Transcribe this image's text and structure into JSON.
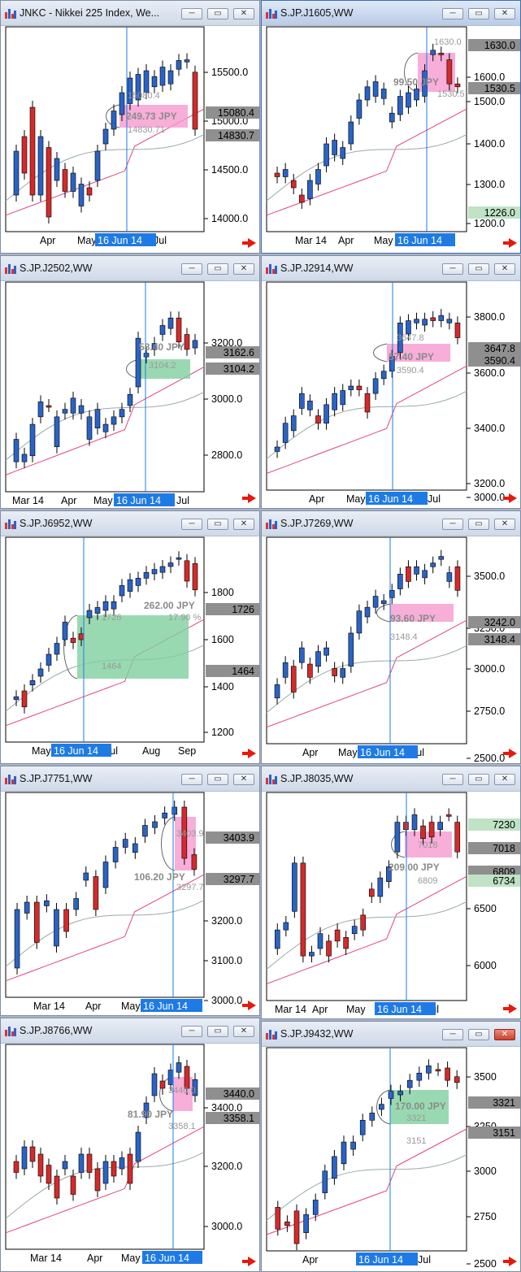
{
  "windows": [
    {
      "id": "w1",
      "title": "JNKC - Nikkei 225 Index, We...",
      "active": false,
      "yticks": [
        "15500.0",
        "15000.0",
        "14500.0",
        "14000.0"
      ],
      "price_labels": [
        {
          "text": "15080.4",
          "color": "gray"
        },
        {
          "text": "14830.7",
          "color": "gray"
        }
      ],
      "xlabels": [
        "Apr",
        "May",
        "Jul"
      ],
      "date_label": "16 Jun 14",
      "overlay": {
        "color": "pink",
        "amount": "249.73 JPY",
        "top_value": "15080.4",
        "bottom_value": "14830.71"
      }
    },
    {
      "id": "w2",
      "title": "S.JP.J1605,WW",
      "active": true,
      "yticks": [
        "1600.0",
        "1500.0",
        "1400.0",
        "1300.0",
        "1200.0"
      ],
      "price_labels": [
        {
          "text": "1630.0",
          "color": "gray"
        },
        {
          "text": "1530.5",
          "color": "gray"
        },
        {
          "text": "1226.0",
          "color": "green"
        }
      ],
      "xlabels": [
        "Mar 14",
        "Apr",
        "May"
      ],
      "date_label": "16 Jun 14",
      "overlay": {
        "color": "pink",
        "amount": "99.50 JPY",
        "top_value": "1630.0",
        "bottom_value": "1530.5"
      }
    },
    {
      "id": "w3",
      "title": "S.JP.J2502,WW",
      "active": false,
      "yticks": [
        "3200.0",
        "3000.0",
        "2800.0"
      ],
      "price_labels": [
        {
          "text": "3162.6",
          "color": "gray"
        },
        {
          "text": "3104.2",
          "color": "gray"
        }
      ],
      "xlabels": [
        "Mar 14",
        "Apr",
        "May",
        "Jul"
      ],
      "date_label": "16 Jun 14",
      "overlay": {
        "color": "green",
        "amount": "58.40 JPY",
        "top_value": "",
        "bottom_value": "3104.2"
      }
    },
    {
      "id": "w4",
      "title": "S.JP.J2914,WW",
      "active": false,
      "yticks": [
        "3800.0",
        "3600.0",
        "3400.0",
        "3200.0",
        "3000.0"
      ],
      "price_labels": [
        {
          "text": "3647.8",
          "color": "gray"
        },
        {
          "text": "3590.4",
          "color": "gray"
        }
      ],
      "xlabels": [
        "Apr",
        "May",
        "Jul"
      ],
      "date_label": "16 Jun 14",
      "overlay": {
        "color": "pink",
        "amount": "57.40 JPY",
        "top_value": "3647.8",
        "bottom_value": "3590.4"
      }
    },
    {
      "id": "w5",
      "title": "S.JP.J6952,WW",
      "active": false,
      "yticks": [
        "1800",
        "1600",
        "1400",
        "1200"
      ],
      "price_labels": [
        {
          "text": "1726",
          "color": "gray"
        },
        {
          "text": "1464",
          "color": "gray"
        }
      ],
      "xlabels": [
        "May",
        "Jul",
        "Aug",
        "Sep"
      ],
      "date_label": "16 Jun 14",
      "overlay": {
        "color": "green",
        "amount": "262.00 JPY",
        "top_value": "1726",
        "bottom_value": "1464",
        "percent": "17.90 %"
      }
    },
    {
      "id": "w6",
      "title": "S.JP.J7269,WW",
      "active": false,
      "yticks": [
        "3500.0",
        "3250.0",
        "3000.0",
        "2750.0",
        "2500.0"
      ],
      "price_labels": [
        {
          "text": "3242.0",
          "color": "gray"
        },
        {
          "text": "3148.4",
          "color": "gray"
        }
      ],
      "xlabels": [
        "Apr",
        "May",
        "Jul"
      ],
      "date_label": "16 Jun 14",
      "overlay": {
        "color": "pink",
        "amount": "93.60 JPY",
        "top_value": "",
        "bottom_value": "3148.4"
      }
    },
    {
      "id": "w7",
      "title": "S.JP.J7751,WW",
      "active": false,
      "yticks": [
        "3200.0",
        "3100.0",
        "3000.0"
      ],
      "price_labels": [
        {
          "text": "3403.9",
          "color": "gray"
        },
        {
          "text": "3297.7",
          "color": "gray"
        }
      ],
      "xlabels": [
        "Mar 14",
        "Apr",
        "May"
      ],
      "date_label": "16 Jun 14",
      "overlay": {
        "color": "pink",
        "amount": "106.20 JPY",
        "top_value": "3403.9",
        "bottom_value": "3297.7"
      }
    },
    {
      "id": "w8",
      "title": "S.JP.J8035,WW",
      "active": false,
      "yticks": [
        "6500",
        "6000"
      ],
      "price_labels": [
        {
          "text": "7230",
          "color": "green"
        },
        {
          "text": "7018",
          "color": "gray"
        },
        {
          "text": "6809",
          "color": "gray"
        },
        {
          "text": "6734",
          "color": "green"
        }
      ],
      "xlabels": [
        "Mar 14",
        "Apr",
        "May",
        "Jul"
      ],
      "date_label": "16 Jun 14",
      "overlay": {
        "color": "pink",
        "amount": "209.00 JPY",
        "top_value": "7018",
        "bottom_value": "6809"
      }
    },
    {
      "id": "w9",
      "title": "S.JP.J8766,WW",
      "active": false,
      "yticks": [
        "3400.0",
        "3200.0",
        "3000.0"
      ],
      "price_labels": [
        {
          "text": "3440.0",
          "color": "gray"
        },
        {
          "text": "3358.1",
          "color": "gray"
        }
      ],
      "xlabels": [
        "Mar 14",
        "Apr",
        "May"
      ],
      "date_label": "16 Jun 14",
      "overlay": {
        "color": "pink",
        "amount": "81.90 JPY",
        "top_value": "3440.0",
        "bottom_value": "3358.1"
      }
    },
    {
      "id": "w10",
      "title": "S.JP.J9432,WW",
      "active": false,
      "yticks": [
        "3500",
        "3250",
        "3000",
        "2750",
        "2500"
      ],
      "price_labels": [
        {
          "text": "3321",
          "color": "gray"
        },
        {
          "text": "3151",
          "color": "gray"
        }
      ],
      "xlabels": [
        "Apr",
        "Jul"
      ],
      "date_label": "16 Jun 14",
      "overlay": {
        "color": "green",
        "amount": "170.00 JPY",
        "top_value": "3321",
        "bottom_value": "3151"
      }
    }
  ],
  "colors": {
    "bull": "#2a63c4",
    "bear": "#d42a2a",
    "pink_zone": "#f59ad0",
    "green_zone": "#7fcf9d",
    "date_bg": "#1e7be6",
    "accent_arrow": "#e8190c"
  }
}
